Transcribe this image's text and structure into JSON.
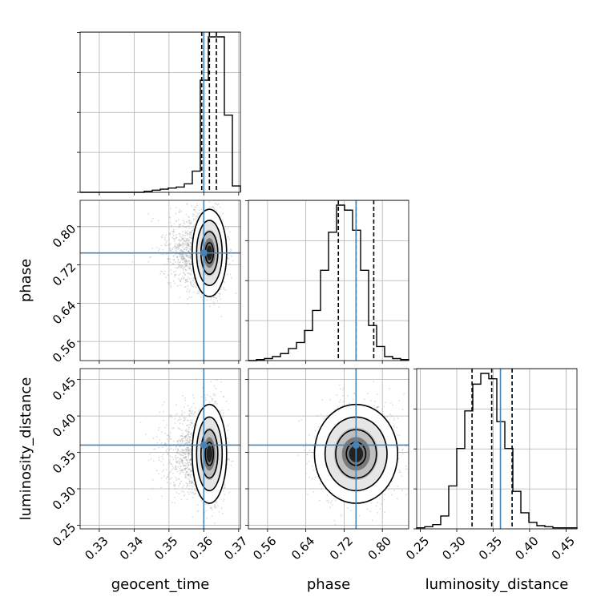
{
  "chart_data": {
    "type": "corner",
    "parameters": [
      "geocent_time",
      "phase",
      "luminosity_distance"
    ],
    "truths": {
      "geocent_time": 0.36,
      "phase": 0.745,
      "luminosity_distance": 0.36
    },
    "ranges": {
      "geocent_time": [
        0.3245,
        0.3705
      ],
      "phase": [
        0.52,
        0.855
      ],
      "luminosity_distance": [
        0.245,
        0.465
      ]
    },
    "ticks": {
      "geocent_time": [
        0.33,
        0.34,
        0.35,
        0.36,
        0.37
      ],
      "phase": [
        0.56,
        0.64,
        0.72,
        0.8
      ],
      "luminosity_distance": [
        0.25,
        0.3,
        0.35,
        0.4,
        0.45
      ]
    },
    "tick_labels": {
      "geocent_time": [
        "0.33",
        "0.34",
        "0.35",
        "0.36",
        "0.37"
      ],
      "phase": [
        "0.56",
        "0.64",
        "0.72",
        "0.80"
      ],
      "luminosity_distance": [
        "0.25",
        "0.30",
        "0.35",
        "0.40",
        "0.45"
      ]
    },
    "quantiles": {
      "geocent_time": [
        0.3594,
        0.3616,
        0.3636
      ],
      "phase": [
        0.708,
        0.745,
        0.782
      ],
      "luminosity_distance": [
        0.321,
        0.348,
        0.376
      ]
    },
    "histograms": {
      "geocent_time": {
        "start": 0.3245,
        "width": 0.0023,
        "counts": [
          0,
          0,
          0,
          0,
          0,
          0,
          0,
          0,
          1,
          2,
          3,
          4,
          5,
          8,
          20,
          106,
          147,
          147,
          73,
          6
        ]
      },
      "phase": {
        "start": 0.52,
        "width": 0.01675,
        "counts": [
          0,
          1,
          2,
          4,
          7,
          12,
          18,
          30,
          50,
          90,
          128,
          155,
          150,
          130,
          90,
          35,
          14,
          4,
          2,
          1
        ]
      },
      "luminosity_distance": {
        "start": 0.245,
        "width": 0.011,
        "counts": [
          1,
          2,
          4,
          12,
          40,
          75,
          110,
          135,
          145,
          140,
          100,
          75,
          35,
          15,
          6,
          3,
          2,
          1,
          1,
          1
        ]
      }
    },
    "grid": true
  }
}
